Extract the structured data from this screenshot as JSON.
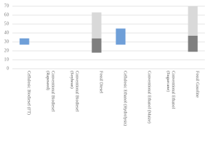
{
  "chart_data": {
    "type": "floating-bar",
    "categories": [
      "Cellulosic Biodiesel (FT)",
      "Conventional Biodiesel (Rapeseed)",
      "Conventional Biodiesel (Soybean)",
      "Fossil Diesel",
      "Cellulosic Ethanol (Hydrolysis)",
      "Conventional Ethanol (Maize)",
      "Conventional Ethanol (Sugarcane)",
      "Fossil Gasoline"
    ],
    "series": [
      {
        "color": "#6f9fd8",
        "low": [
          27,
          null,
          null,
          null,
          27,
          null,
          null,
          null
        ],
        "high": [
          34,
          null,
          null,
          null,
          45,
          null,
          null,
          null
        ]
      },
      {
        "color": "#7f7f7f",
        "low": [
          null,
          null,
          null,
          18,
          null,
          null,
          null,
          19
        ],
        "high": [
          null,
          null,
          null,
          34,
          null,
          null,
          null,
          37
        ]
      },
      {
        "color": "#d9d9d9",
        "low": [
          null,
          null,
          null,
          34,
          null,
          null,
          null,
          37
        ],
        "high": [
          null,
          null,
          null,
          63,
          null,
          null,
          null,
          70
        ]
      }
    ],
    "ylim": [
      0,
      70
    ],
    "yticks": [
      0,
      10,
      20,
      30,
      40,
      50,
      60,
      70
    ],
    "grid": true
  }
}
